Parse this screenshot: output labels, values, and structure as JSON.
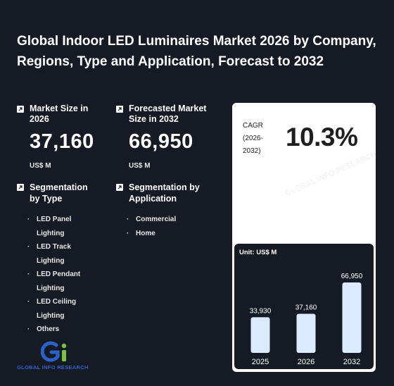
{
  "title": "Global Indoor LED Luminaires Market 2026 by Company, Regions, Type and Application, Forecast to 2032",
  "market_size": {
    "label": "Market Size in 2026",
    "value": "37,160",
    "unit": "US$ M"
  },
  "forecast_size": {
    "label": "Forecasted Market Size in 2032",
    "value": "66,950",
    "unit": "US$ M"
  },
  "segment_type": {
    "label": "Segmentation by Type",
    "items": [
      "LED Panel Lighting",
      "LED Track Lighting",
      "LED Pendant Lighting",
      "LED Ceiling Lighting",
      "Others"
    ]
  },
  "segment_app": {
    "label": "Segmentation by Application",
    "items": [
      "Commercial",
      "Home"
    ]
  },
  "cagr": {
    "label": "CAGR (2026-2032)",
    "value": "10.3%"
  },
  "logo_text": "GLOBAL INFO RESEARCH",
  "watermark": "GLOBAL INFO RESEARCH",
  "colors": {
    "background": "#161a24",
    "bar": "#dbeafe",
    "logo_blue": "#2b62c9",
    "logo_green": "#7cc242"
  },
  "chart_data": {
    "type": "bar",
    "unit_label": "Unit: US$ M",
    "categories": [
      "2025",
      "2026",
      "2032"
    ],
    "values": [
      33930,
      37160,
      66950
    ],
    "value_labels": [
      "33,930",
      "37,160",
      "66,950"
    ]
  }
}
